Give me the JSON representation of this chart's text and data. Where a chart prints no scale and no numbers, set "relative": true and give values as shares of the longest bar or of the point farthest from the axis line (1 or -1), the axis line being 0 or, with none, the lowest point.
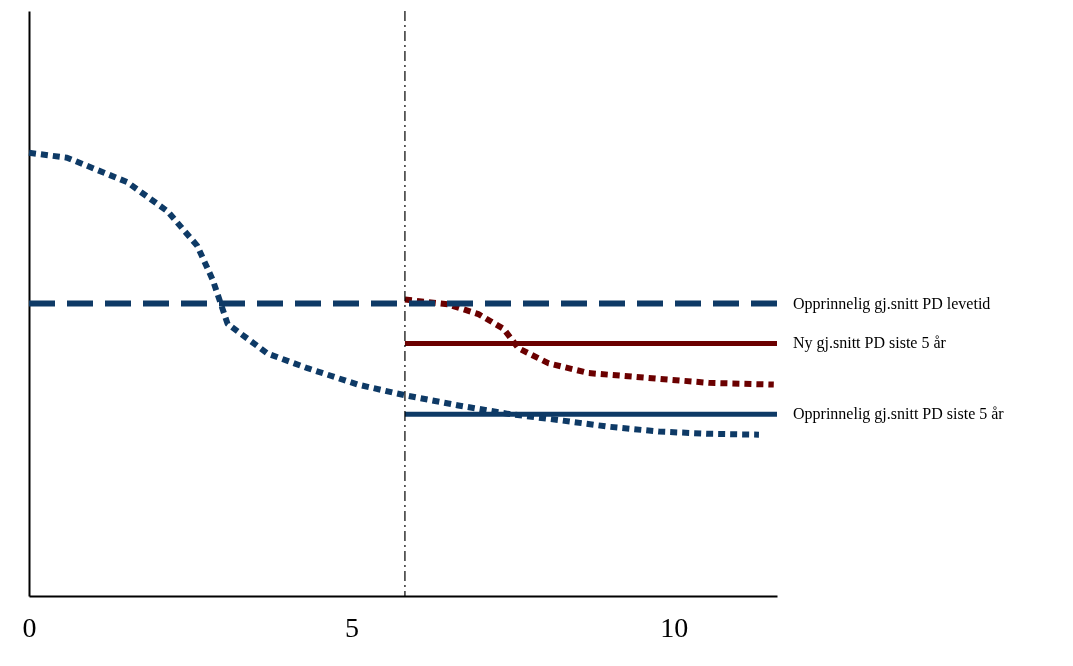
{
  "chart_data": {
    "type": "line",
    "relative": true,
    "xlim": [
      0,
      11.6
    ],
    "xticks": [
      0,
      5,
      10
    ],
    "grid": false,
    "legend": false,
    "marker": "none",
    "tick_labels": "x",
    "ref_lines": [
      {
        "axis": "x",
        "value": 5.83,
        "color": "#000000",
        "line_style": "dashed"
      }
    ],
    "series": [
      {
        "name": null,
        "color": "#0e3a66",
        "line_style": "dotted",
        "x": [
          0,
          0.59,
          1.52,
          2.15,
          2.61,
          2.85,
          3.08,
          3.7,
          4.32,
          5.1,
          5.83,
          6.66,
          7.43,
          8.21,
          8.99,
          9.77,
          10.54,
          11.32
        ],
        "values": [
          1.0,
          0.989,
          0.934,
          0.868,
          0.79,
          0.713,
          0.614,
          0.547,
          0.514,
          0.477,
          0.453,
          0.43,
          0.411,
          0.397,
          0.382,
          0.371,
          0.366,
          0.364
        ]
      },
      {
        "name": null,
        "color": "#6b0000",
        "line_style": "dotted",
        "x": [
          5.83,
          6.5,
          6.97,
          7.36,
          7.59,
          8.06,
          8.68,
          9.61,
          10.54,
          11.55
        ],
        "values": [
          0.669,
          0.658,
          0.636,
          0.603,
          0.559,
          0.525,
          0.503,
          0.492,
          0.481,
          0.477
        ]
      },
      {
        "name": "Opprinnelig gj.snitt PD levetid",
        "color": "#0e3a66",
        "line_style": "dashed",
        "x": [
          0,
          11.6
        ],
        "values": [
          0.66,
          0.66
        ]
      },
      {
        "name": "Ny gj.snitt PD siste 5 år",
        "color": "#6b0000",
        "line_style": "solid",
        "x": [
          5.83,
          11.6
        ],
        "values": [
          0.57,
          0.57
        ]
      },
      {
        "name": "Opprinnelig gj.snitt PD siste 5 år",
        "color": "#0e3a66",
        "line_style": "solid",
        "x": [
          5.83,
          11.6
        ],
        "values": [
          0.41,
          0.41
        ]
      }
    ]
  }
}
